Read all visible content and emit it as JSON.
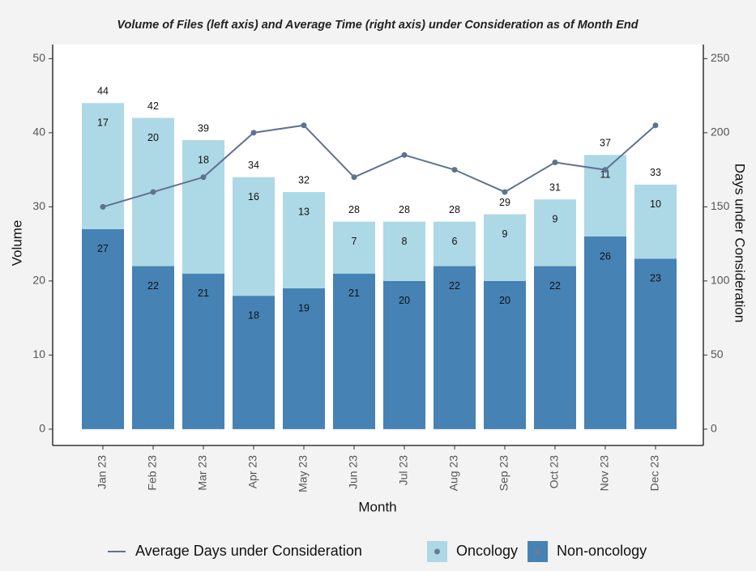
{
  "chart_data": {
    "type": "bar",
    "title": "Volume of Files (left axis) and Average Time (right axis) under Consideration as of Month End",
    "x_label": "Month",
    "y_label": "Volume",
    "y2_label": "Days under Consideration",
    "categories": [
      "Jan 23",
      "Feb 23",
      "Mar 23",
      "Apr 23",
      "May 23",
      "Jun 23",
      "Jul 23",
      "Aug 23",
      "Sep 23",
      "Oct 23",
      "Nov 23",
      "Dec 23"
    ],
    "series": [
      {
        "name": "Non-oncology",
        "color": "#4682b4",
        "type": "bar",
        "values": [
          27,
          22,
          21,
          18,
          19,
          21,
          20,
          22,
          20,
          22,
          26,
          23
        ]
      },
      {
        "name": "Oncology",
        "color": "#add8e6",
        "type": "bar",
        "values": [
          17,
          20,
          18,
          16,
          13,
          7,
          8,
          6,
          9,
          9,
          11,
          10
        ]
      },
      {
        "name": "Average Days under Consideration",
        "color": "#5e7390",
        "type": "line",
        "axis": "y2",
        "values": [
          150,
          160,
          170,
          200,
          205,
          170,
          185,
          175,
          160,
          180,
          175,
          205
        ]
      }
    ],
    "totals": [
      44,
      42,
      39,
      34,
      32,
      28,
      28,
      28,
      29,
      31,
      37,
      33
    ],
    "ylim": [
      -2.2,
      51.9
    ],
    "yticks": [
      0,
      10,
      20,
      30,
      40,
      50
    ],
    "y2lim": [
      -11,
      259.5
    ],
    "y2ticks": [
      0,
      50,
      100,
      150,
      200,
      250
    ],
    "stacked": true,
    "legend": "bottom"
  }
}
